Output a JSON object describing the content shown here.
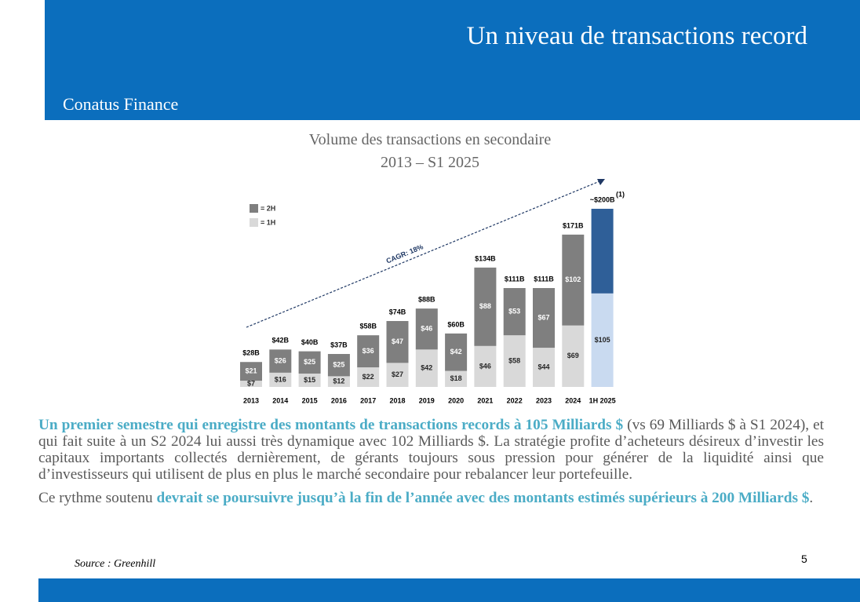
{
  "header": {
    "title": "Un niveau de transactions record",
    "company": "Conatus Finance"
  },
  "chart_data": {
    "type": "bar",
    "stacked": true,
    "title": "Volume des transactions en secondaire",
    "subtitle": "2013 – S1 2025",
    "categories": [
      "2013",
      "2014",
      "2015",
      "2016",
      "2017",
      "2018",
      "2019",
      "2020",
      "2021",
      "2022",
      "2023",
      "2024",
      "1H 2025"
    ],
    "series": [
      {
        "name": "= 1H",
        "color": "#d9d9d9",
        "colors": [
          "#d9d9d9",
          "#d9d9d9",
          "#d9d9d9",
          "#d9d9d9",
          "#d9d9d9",
          "#d9d9d9",
          "#d9d9d9",
          "#d9d9d9",
          "#d9d9d9",
          "#d9d9d9",
          "#d9d9d9",
          "#d9d9d9",
          "#c9daf0"
        ],
        "values": [
          7,
          16,
          15,
          12,
          22,
          27,
          42,
          18,
          46,
          58,
          44,
          69,
          105
        ],
        "value_labels": [
          "$7",
          "$16",
          "$15",
          "$12",
          "$22",
          "$27",
          "$42",
          "$18",
          "$46",
          "$58",
          "$44",
          "$69",
          "$105"
        ]
      },
      {
        "name": "= 2H",
        "color": "#7f7f7f",
        "colors": [
          "#7f7f7f",
          "#7f7f7f",
          "#7f7f7f",
          "#7f7f7f",
          "#7f7f7f",
          "#7f7f7f",
          "#7f7f7f",
          "#7f7f7f",
          "#7f7f7f",
          "#7f7f7f",
          "#7f7f7f",
          "#7f7f7f",
          "#2f5f98"
        ],
        "values": [
          21,
          26,
          25,
          25,
          36,
          47,
          46,
          42,
          88,
          53,
          67,
          102,
          95
        ],
        "value_labels": [
          "$21",
          "$26",
          "$25",
          "$25",
          "$36",
          "$47",
          "$46",
          "$42",
          "$88",
          "$53",
          "$67",
          "$102",
          null
        ]
      }
    ],
    "totals": {
      "values": [
        28,
        42,
        40,
        37,
        58,
        74,
        88,
        60,
        134,
        111,
        111,
        171,
        200
      ],
      "value_labels": [
        "$28B",
        "$42B",
        "$40B",
        "$37B",
        "$58B",
        "$74B",
        "$88B",
        "$60B",
        "$134B",
        "$111B",
        "$111B",
        "$171B",
        "~$200B"
      ],
      "note": "(1)"
    },
    "annotation": "CAGR: 18%"
  },
  "paragraphs": [
    {
      "parts": [
        "Un premier semestre qui enregistre des montants de transactions records à 105 Milliards $",
        " (vs 69 Milliards $ à S1 2024), et qui fait suite à un S2 2024 lui aussi très dynamique avec 102 Milliards $. La stratégie profite d’acheteurs désireux d’investir les capitaux importants collectés dernièrement, de gérants toujours sous pression pour générer de la liquidité ainsi que d’investisseurs qui utilisent de plus en plus le marché secondaire pour rebalancer leur portefeuille."
      ]
    },
    {
      "parts": [
        "Ce rythme soutenu ",
        "devrait se poursuivre jusqu’à la fin de l’année avec des montants estimés supérieurs à 200 Milliards $",
        "."
      ]
    }
  ],
  "source": "Source : Greenhill",
  "page_number": "5"
}
